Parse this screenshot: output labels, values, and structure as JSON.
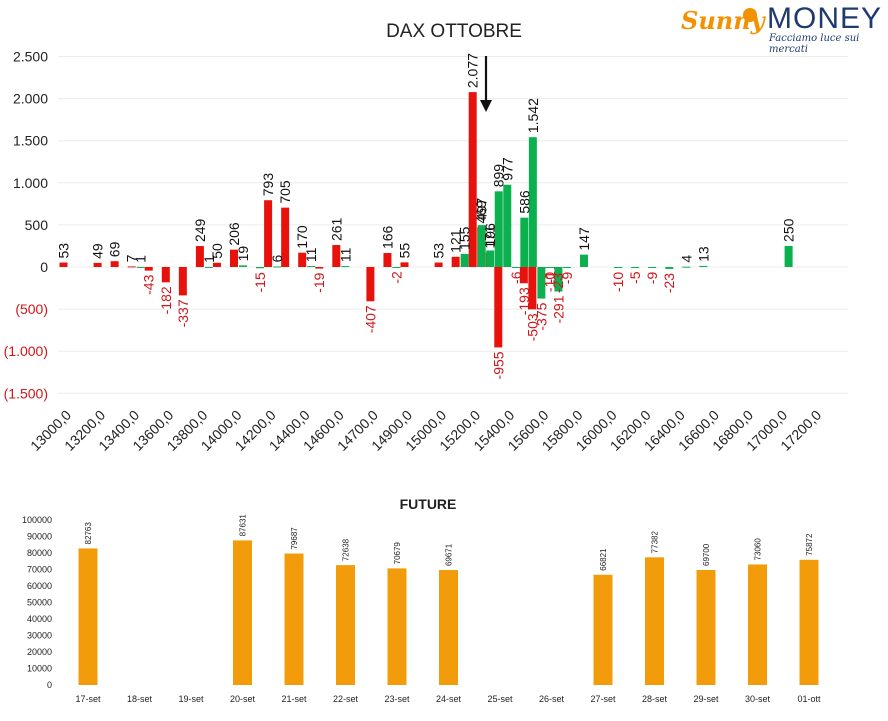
{
  "logo": {
    "brand_left": "Sunny",
    "brand_right": "MONEY",
    "tagline": "Facciamo luce sui mercati"
  },
  "colors": {
    "negative": "#e8120c",
    "positive": "#0bb14f",
    "future": "#f39c0b",
    "neg_label": "#d0161a"
  },
  "chart_data": [
    {
      "type": "bar",
      "title": "DAX OTTOBRE",
      "ylim": [
        -1500,
        2500
      ],
      "yticks": [
        {
          "v": 2500,
          "t": "2.500"
        },
        {
          "v": 2000,
          "t": "2.000"
        },
        {
          "v": 1500,
          "t": "1.500"
        },
        {
          "v": 1000,
          "t": "1.000"
        },
        {
          "v": 500,
          "t": "500"
        },
        {
          "v": 0,
          "t": "0"
        },
        {
          "v": -500,
          "t": "(500)"
        },
        {
          "v": -1000,
          "t": "(1.000)"
        },
        {
          "v": -1500,
          "t": "(1.500)"
        }
      ],
      "categories": [
        "13000,0",
        "13200,0",
        "13400,0",
        "13600,0",
        "13800,0",
        "14000,0",
        "14200,0",
        "14400,0",
        "14600,0",
        "14700,0",
        "14900,0",
        "15000,0",
        "15200,0",
        "15400,0",
        "15600,0",
        "15800,0",
        "16000,0",
        "16200,0",
        "16400,0",
        "16600,0",
        "16800,0",
        "17000,0",
        "17200,0"
      ],
      "annotation": "arrow-down",
      "series": [
        {
          "values": [
            {
              "x": 13000,
              "v": 53,
              "l": "53"
            },
            {
              "x": 13200,
              "v": 49,
              "l": "49"
            },
            {
              "x": 13300,
              "v": 69,
              "l": "69"
            },
            {
              "x": 13400,
              "v": 7,
              "l": "7"
            },
            {
              "x": 13500,
              "v": -43,
              "l": "-43"
            },
            {
              "x": 13600,
              "v": -182,
              "l": "-182"
            },
            {
              "x": 13700,
              "v": -337,
              "l": "-337"
            },
            {
              "x": 13800,
              "v": 249,
              "l": "249"
            },
            {
              "x": 13900,
              "v": 50,
              "l": "50"
            },
            {
              "x": 14000,
              "v": 206,
              "l": "206"
            },
            {
              "x": 14200,
              "v": 793,
              "l": "793"
            },
            {
              "x": 14300,
              "v": 705,
              "l": "705"
            },
            {
              "x": 14400,
              "v": 170,
              "l": "170"
            },
            {
              "x": 14500,
              "v": -19,
              "l": "-19"
            },
            {
              "x": 14600,
              "v": 261,
              "l": "261"
            },
            {
              "x": 14700,
              "v": -407,
              "l": "-407"
            },
            {
              "x": 14800,
              "v": 166,
              "l": "166"
            },
            {
              "x": 14900,
              "v": 55,
              "l": "55"
            },
            {
              "x": 15000,
              "v": 53,
              "l": "53"
            },
            {
              "x": 15100,
              "v": 121,
              "l": "121"
            },
            {
              "x": 15200,
              "v": 2077,
              "l": "2.077"
            },
            {
              "x": 15250,
              "v": 469,
              "l": "469"
            },
            {
              "x": 15300,
              "v": 171,
              "l": "171"
            },
            {
              "x": 15350,
              "v": -955,
              "l": "-955"
            },
            {
              "x": 15500,
              "v": -193,
              "l": "-193"
            },
            {
              "x": 15550,
              "v": -503,
              "l": "-503"
            },
            {
              "x": 15650,
              "v": -10,
              "l": "-10"
            },
            {
              "x": 15700,
              "v": -23,
              "l": "-23"
            }
          ]
        },
        {
          "values": [
            {
              "x": 13400,
              "v": 1,
              "l": "1"
            },
            {
              "x": 13800,
              "v": 1,
              "l": "1"
            },
            {
              "x": 14000,
              "v": 19,
              "l": "19"
            },
            {
              "x": 14100,
              "v": -15,
              "l": "-15"
            },
            {
              "x": 14200,
              "v": 6,
              "l": "6"
            },
            {
              "x": 14400,
              "v": 11,
              "l": "11"
            },
            {
              "x": 14600,
              "v": 11,
              "l": "11"
            },
            {
              "x": 14800,
              "v": -2,
              "l": "-2"
            },
            {
              "x": 15100,
              "v": 155,
              "l": "155"
            },
            {
              "x": 15200,
              "v": 497,
              "l": "497"
            },
            {
              "x": 15250,
              "v": 196,
              "l": "196"
            },
            {
              "x": 15300,
              "v": 899,
              "l": "899"
            },
            {
              "x": 15350,
              "v": 977,
              "l": "977"
            },
            {
              "x": 15400,
              "v": -6,
              "l": "-6"
            },
            {
              "x": 15450,
              "v": 586,
              "l": "586"
            },
            {
              "x": 15500,
              "v": 1542,
              "l": "1.542"
            },
            {
              "x": 15550,
              "v": -375,
              "l": "-375"
            },
            {
              "x": 15600,
              "v": -1,
              "l": "-1"
            },
            {
              "x": 15650,
              "v": -291,
              "l": "-291"
            },
            {
              "x": 15700,
              "v": -9,
              "l": "-9"
            },
            {
              "x": 15800,
              "v": 147,
              "l": "147"
            },
            {
              "x": 16000,
              "v": -10,
              "l": "-10"
            },
            {
              "x": 16100,
              "v": -5,
              "l": "-5"
            },
            {
              "x": 16200,
              "v": -9,
              "l": "-9"
            },
            {
              "x": 16300,
              "v": -23,
              "l": "-23"
            },
            {
              "x": 16400,
              "v": 4,
              "l": "4"
            },
            {
              "x": 16500,
              "v": 13,
              "l": "13"
            },
            {
              "x": 17000,
              "v": 250,
              "l": "250"
            }
          ]
        }
      ]
    },
    {
      "type": "bar",
      "title": "FUTURE",
      "ylim": [
        0,
        100000
      ],
      "yticks": [
        "0",
        "10000",
        "20000",
        "30000",
        "40000",
        "50000",
        "60000",
        "70000",
        "80000",
        "90000",
        "100000"
      ],
      "categories": [
        "17-set",
        "18-set",
        "19-set",
        "20-set",
        "21-set",
        "22-set",
        "23-set",
        "24-set",
        "25-set",
        "26-set",
        "27-set",
        "28-set",
        "29-set",
        "30-set",
        "01-ott"
      ],
      "values": [
        82763,
        null,
        null,
        87631,
        79687,
        72638,
        70679,
        69671,
        null,
        null,
        66821,
        77382,
        69700,
        73060,
        75872
      ]
    }
  ]
}
